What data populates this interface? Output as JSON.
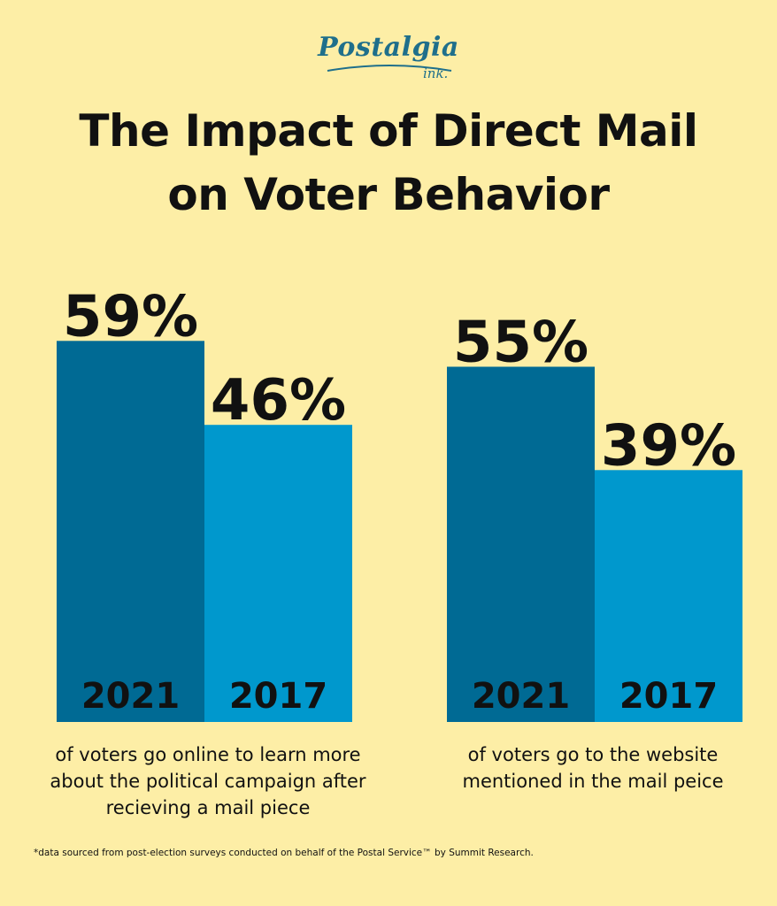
{
  "logo": {
    "main": "Postalgia",
    "sub": "ink."
  },
  "title": {
    "line1": "The Impact of Direct Mail",
    "line2": "on Voter Behavior"
  },
  "colors": {
    "background": "#FDEEA6",
    "dark_bar": "#006A94",
    "light_bar": "#0098CD",
    "logo": "#1F6F8B"
  },
  "chart_data": [
    {
      "type": "bar",
      "categories": [
        "2021",
        "2017"
      ],
      "values": [
        59,
        46
      ],
      "value_labels": [
        "59%",
        "46%"
      ],
      "caption": [
        "of voters go online to learn more",
        "about the political campaign after",
        "recieving a mail piece"
      ]
    },
    {
      "type": "bar",
      "categories": [
        "2021",
        "2017"
      ],
      "values": [
        55,
        39
      ],
      "value_labels": [
        "55%",
        "39%"
      ],
      "caption": [
        "of voters go to the website",
        "mentioned in the mail peice"
      ]
    }
  ],
  "footnote": "*data sourced from post-election surveys conducted on behalf of the Postal Service™ by Summit Research."
}
